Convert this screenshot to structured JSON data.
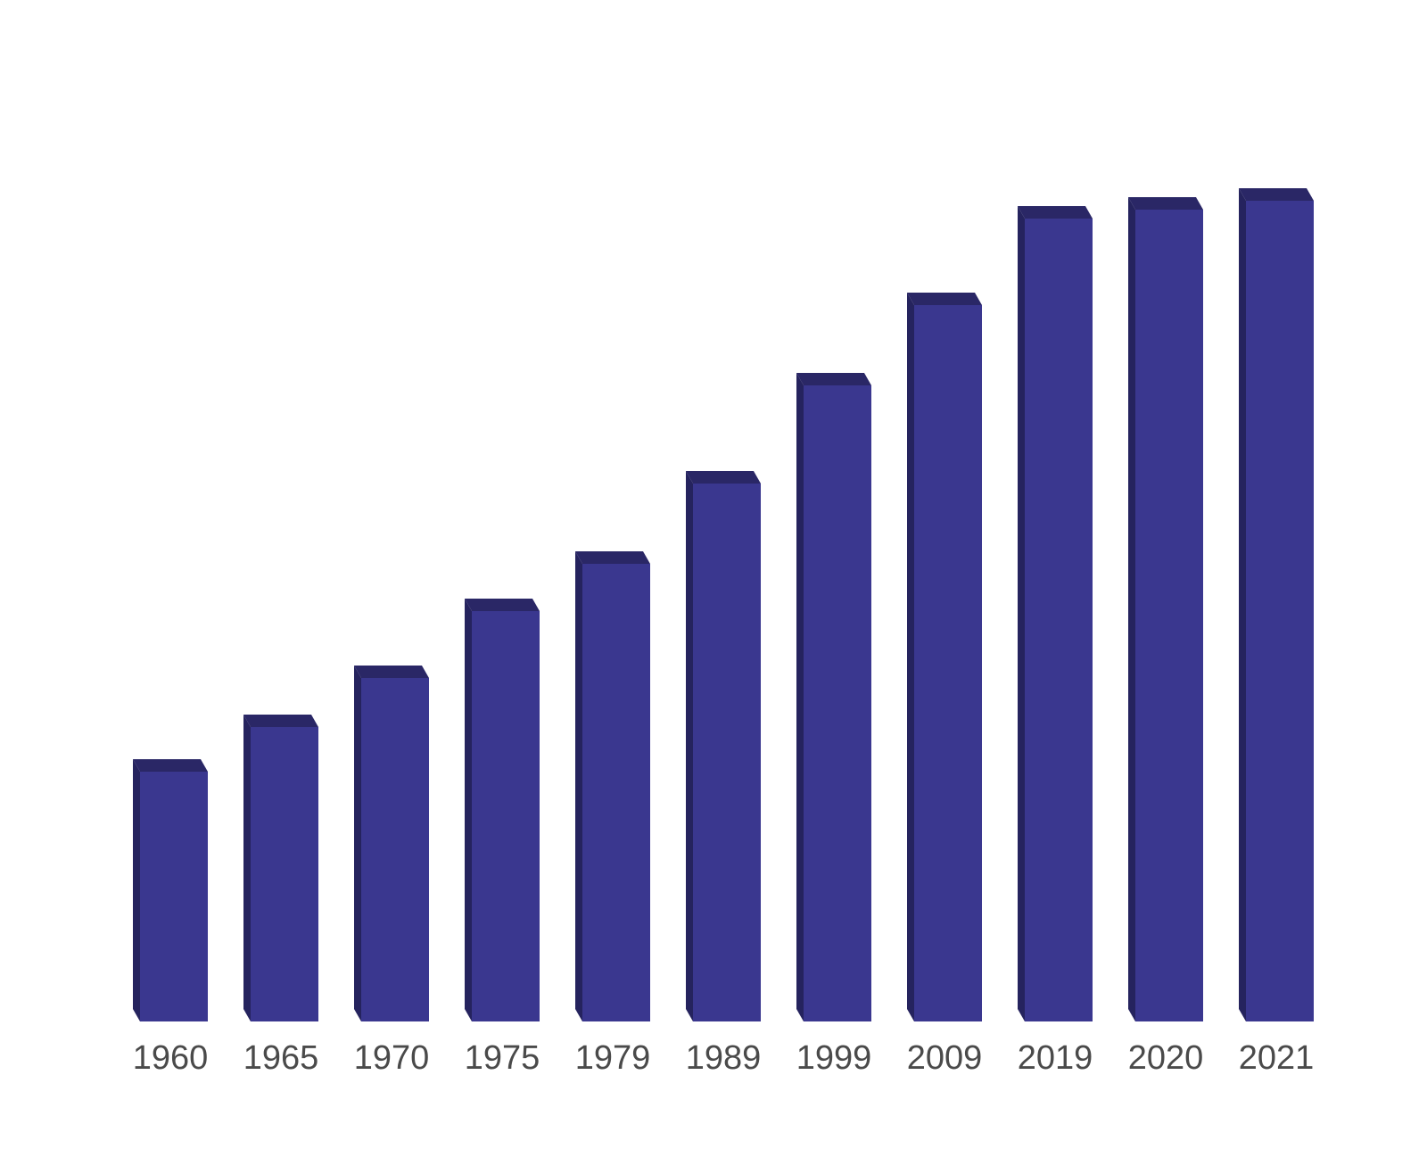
{
  "chart_data": {
    "type": "bar",
    "title": "",
    "xlabel": "",
    "ylabel": "",
    "categories": [
      "1960",
      "1965",
      "1970",
      "1975",
      "1979",
      "1989",
      "1999",
      "2009",
      "2019",
      "2020",
      "2021"
    ],
    "series": [
      {
        "values": [
          280,
          330,
          385,
          460,
          513,
          603,
          713,
          803,
          900,
          910,
          920
        ]
      }
    ],
    "ylim": [
      0,
      1000
    ],
    "grid": false,
    "legend": "none"
  },
  "colors": {
    "bar_front": "#3a378f",
    "bar_side": "#25235e",
    "bar_top": "#2a2766",
    "tick_text": "#4a4a4a",
    "background": "#ffffff"
  }
}
